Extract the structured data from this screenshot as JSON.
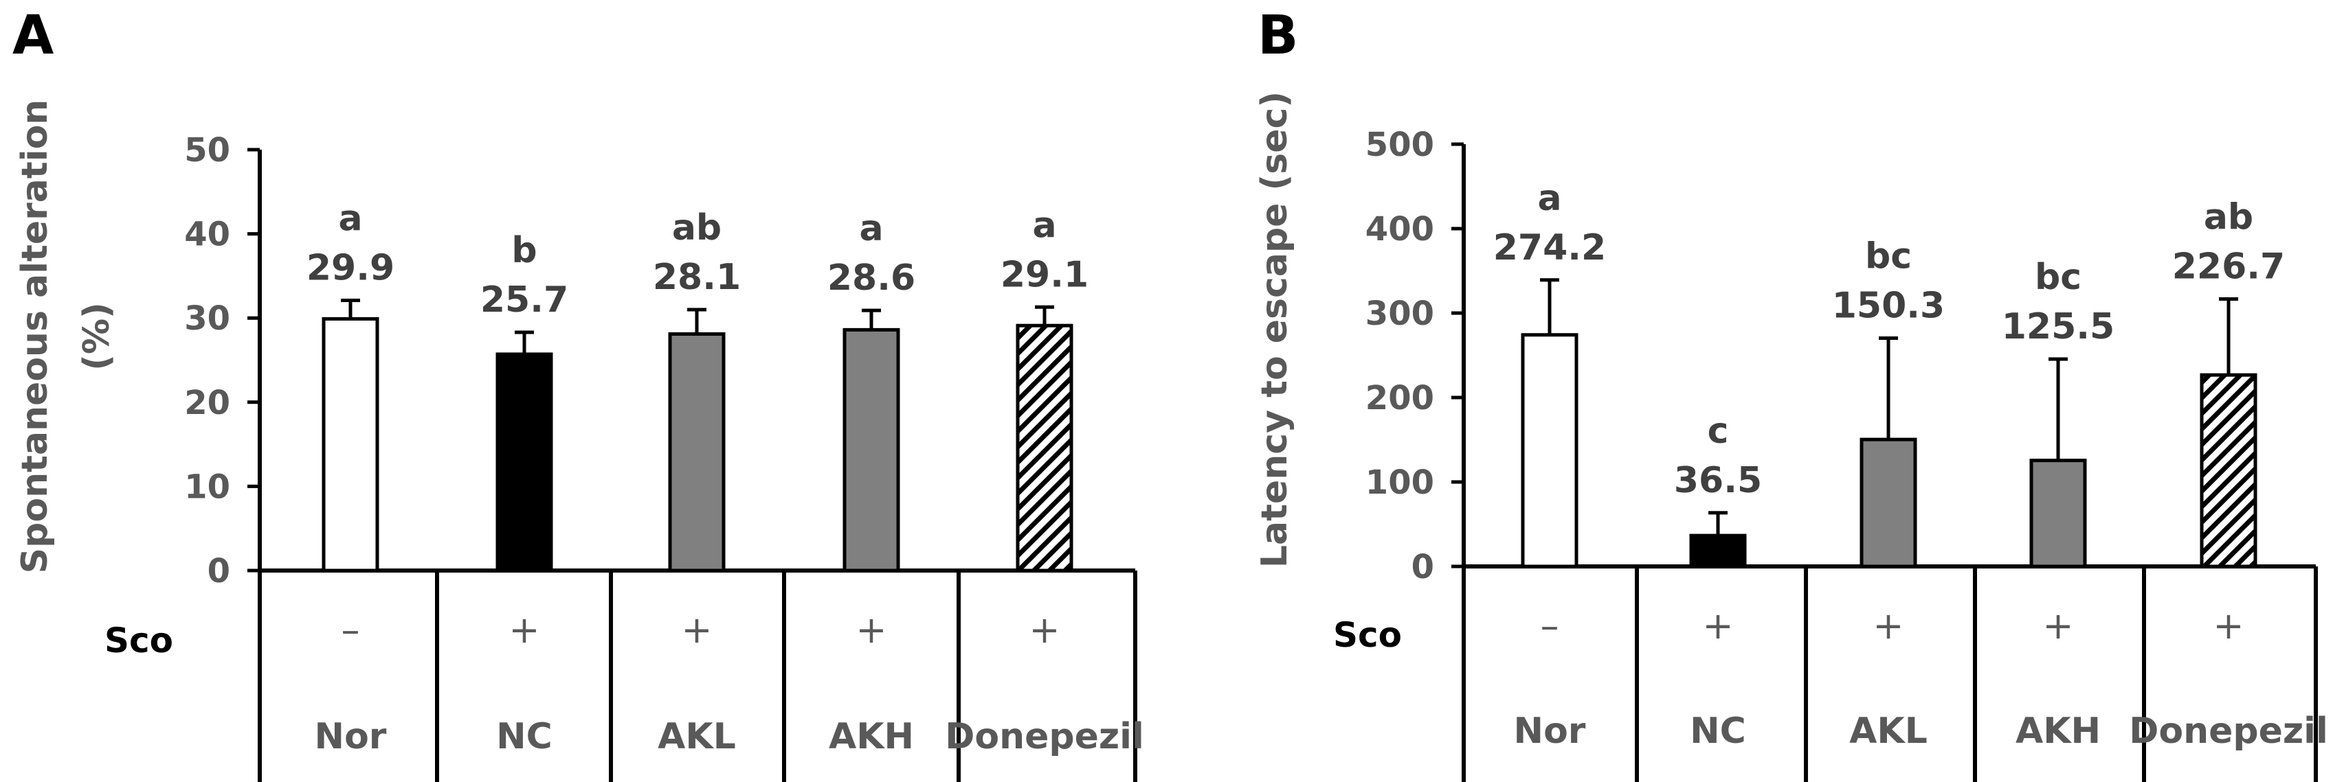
{
  "colors": {
    "nor": "#ffffff",
    "nc": "#000000",
    "ak": "#808080",
    "donepezil": "hatch",
    "text": "#595959",
    "value_text": "#404040"
  },
  "sco_label": "Sco",
  "chart_data": [
    {
      "panel": "A",
      "type": "bar",
      "ylabel_line1": "Spontaneous alteration",
      "ylabel_line2": "(%)",
      "ylim": [
        0,
        50
      ],
      "yticks": [
        "0",
        "10",
        "20",
        "30",
        "40",
        "50"
      ],
      "categories": [
        "Nor",
        "NC",
        "AKL",
        "AKH",
        "Donepezil"
      ],
      "sco": [
        "–",
        "+",
        "+",
        "+",
        "+"
      ],
      "values": [
        29.9,
        25.7,
        28.1,
        28.6,
        29.1
      ],
      "value_labels": [
        "29.9",
        "25.7",
        "28.1",
        "28.6",
        "29.1"
      ],
      "errors": [
        2.2,
        2.6,
        2.9,
        2.3,
        2.2
      ],
      "letters": [
        "a",
        "b",
        "ab",
        "a",
        "a"
      ],
      "fills": [
        "white",
        "black",
        "gray",
        "gray",
        "hatch"
      ]
    },
    {
      "panel": "B",
      "type": "bar",
      "ylabel_line1": "Latency to escape (sec)",
      "ylim": [
        0,
        500
      ],
      "yticks": [
        "0",
        "100",
        "200",
        "300",
        "400",
        "500"
      ],
      "categories": [
        "Nor",
        "NC",
        "AKL",
        "AKH",
        "Donepezil"
      ],
      "sco": [
        "–",
        "+",
        "+",
        "+",
        "+"
      ],
      "values": [
        274.2,
        36.5,
        150.3,
        125.5,
        226.7
      ],
      "value_labels": [
        "274.2",
        "36.5",
        "150.3",
        "125.5",
        "226.7"
      ],
      "errors": [
        65,
        27,
        120,
        120,
        90
      ],
      "letters": [
        "a",
        "c",
        "bc",
        "bc",
        "ab"
      ],
      "fills": [
        "white",
        "black",
        "gray",
        "gray",
        "hatch"
      ]
    }
  ]
}
